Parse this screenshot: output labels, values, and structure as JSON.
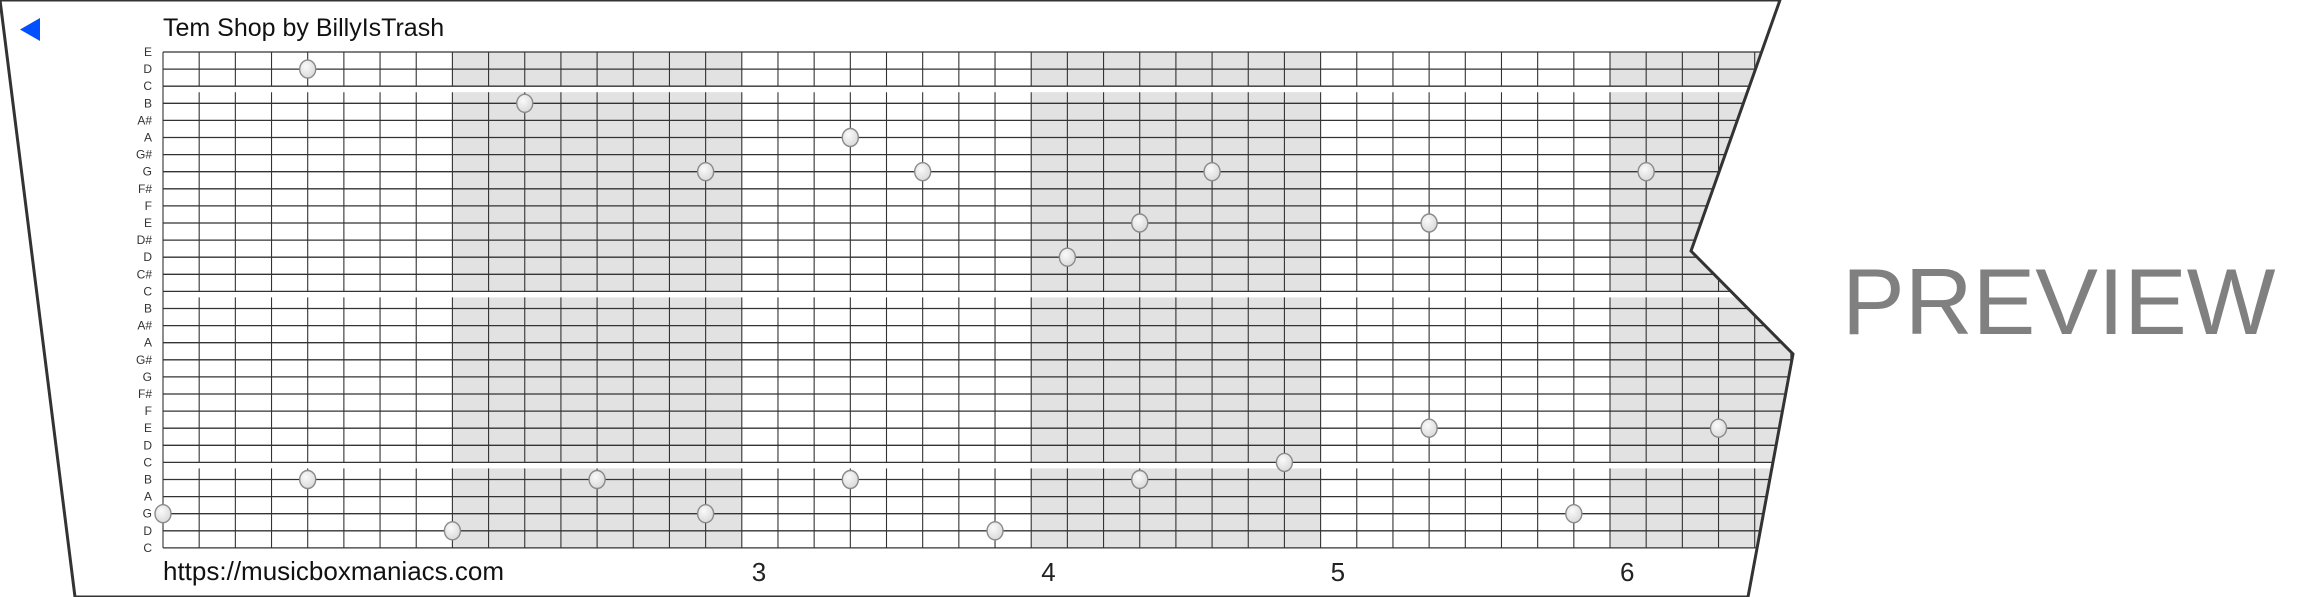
{
  "header": {
    "title": "Tem Shop by BillyIsTrash",
    "back_icon": "triangle-left-icon",
    "accent": "#0050ff"
  },
  "footer": {
    "url": "https://musicboxmaniacs.com"
  },
  "watermark": "PREVIEW",
  "strip": {
    "pitches": [
      "E",
      "D",
      "C",
      "B",
      "A#",
      "A",
      "G#",
      "G",
      "F#",
      "F",
      "E",
      "D#",
      "D",
      "C#",
      "C",
      "B",
      "A#",
      "A",
      "G#",
      "G",
      "F#",
      "F",
      "E",
      "D",
      "C",
      "B",
      "A",
      "G",
      "D",
      "C"
    ],
    "beat_labels": [
      {
        "beat": 3,
        "label": "3"
      },
      {
        "beat": 4,
        "label": "4"
      },
      {
        "beat": 5,
        "label": "5"
      },
      {
        "beat": 6,
        "label": "6"
      }
    ],
    "shaded_beats": [
      2,
      4,
      6
    ],
    "subdivisions_per_beat": 8,
    "shade_color": "#e2e2e2",
    "notes": [
      {
        "beat": 1.5,
        "pitch_index": 1
      },
      {
        "beat": 2.25,
        "pitch_index": 3
      },
      {
        "beat": 3.375,
        "pitch_index": 5
      },
      {
        "beat": 2.875,
        "pitch_index": 7
      },
      {
        "beat": 3.625,
        "pitch_index": 7
      },
      {
        "beat": 4.625,
        "pitch_index": 7
      },
      {
        "beat": 6.125,
        "pitch_index": 7
      },
      {
        "beat": 4.375,
        "pitch_index": 10
      },
      {
        "beat": 5.375,
        "pitch_index": 10
      },
      {
        "beat": 4.125,
        "pitch_index": 12
      },
      {
        "beat": 5.375,
        "pitch_index": 22
      },
      {
        "beat": 6.375,
        "pitch_index": 22
      },
      {
        "beat": 4.875,
        "pitch_index": 24
      },
      {
        "beat": 1.5,
        "pitch_index": 25
      },
      {
        "beat": 2.5,
        "pitch_index": 25
      },
      {
        "beat": 3.375,
        "pitch_index": 25
      },
      {
        "beat": 4.375,
        "pitch_index": 25
      },
      {
        "beat": 1.0,
        "pitch_index": 27
      },
      {
        "beat": 2.875,
        "pitch_index": 27
      },
      {
        "beat": 5.875,
        "pitch_index": 27
      },
      {
        "beat": 2.0,
        "pitch_index": 28
      },
      {
        "beat": 3.875,
        "pitch_index": 28
      }
    ]
  }
}
